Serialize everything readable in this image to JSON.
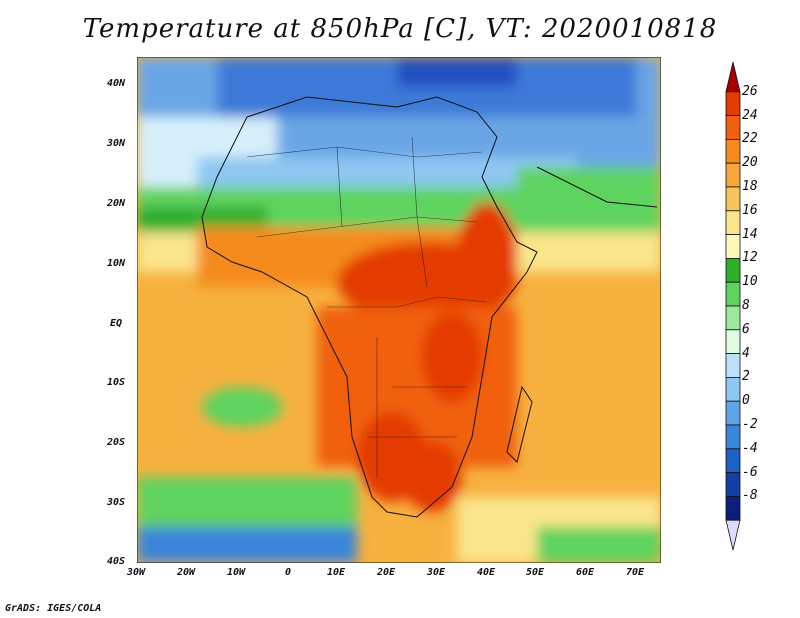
{
  "title": "Temperature at 850hPa [C], VT: 2020010818",
  "footer": "GrADS: IGES/COLA",
  "map": {
    "lon_range": [
      -30,
      75
    ],
    "lat_range": [
      -40,
      45
    ],
    "lat_ticks": [
      "40N",
      "30N",
      "20N",
      "10N",
      "EQ",
      "10S",
      "20S",
      "30S",
      "40S"
    ],
    "lon_ticks": [
      "30W",
      "20W",
      "10W",
      "0",
      "10E",
      "20E",
      "30E",
      "40E",
      "50E",
      "60E",
      "70E"
    ]
  },
  "colorbar": {
    "labels": [
      "26",
      "24",
      "22",
      "20",
      "18",
      "16",
      "14",
      "12",
      "10",
      "8",
      "6",
      "4",
      "2",
      "0",
      "-2",
      "-4",
      "-6",
      "-8"
    ],
    "colors": [
      "#a80000",
      "#e43b00",
      "#f06010",
      "#f58b1a",
      "#f7a737",
      "#f8c55c",
      "#fae58c",
      "#fdf7b9",
      "#2dae2d",
      "#5fd35f",
      "#9ee89e",
      "#e0fbe0",
      "#bce0f7",
      "#8ec7f2",
      "#5ea5e8",
      "#3b85da",
      "#1f60c7",
      "#133ea6",
      "#0c1f7d",
      "#dcdcff"
    ]
  }
}
